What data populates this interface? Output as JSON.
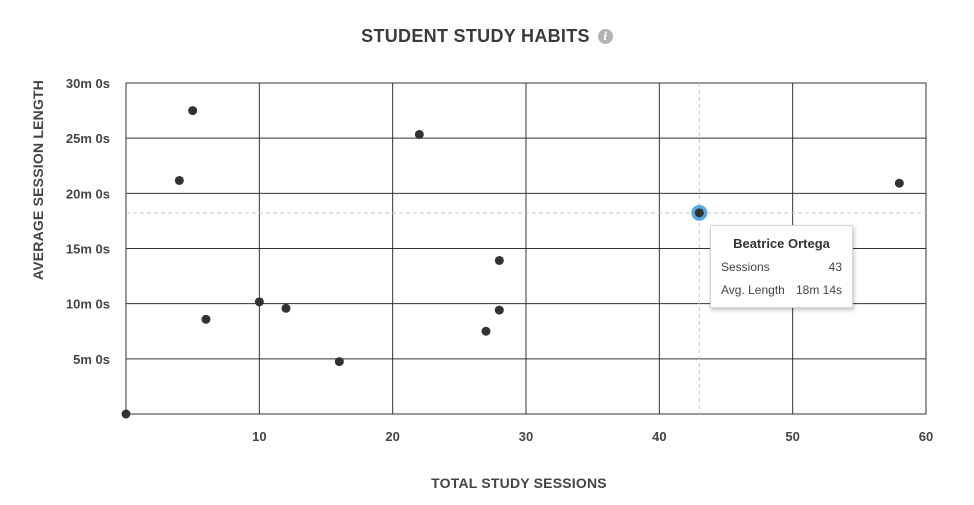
{
  "chart_data": {
    "type": "scatter",
    "title": "STUDENT STUDY HABITS",
    "xlabel": "TOTAL STUDY SESSIONS",
    "ylabel": "AVERAGE SESSION LENGTH",
    "xlim": [
      0,
      60
    ],
    "ylim": [
      0,
      1800
    ],
    "x_ticks": [
      10,
      20,
      30,
      40,
      50,
      60
    ],
    "x_tick_labels": [
      "10",
      "20",
      "30",
      "40",
      "50",
      "60"
    ],
    "y_ticks": [
      300,
      600,
      900,
      1200,
      1500,
      1800
    ],
    "y_tick_labels": [
      "5m 0s",
      "10m 0s",
      "15m 0s",
      "20m 0s",
      "25m 0s",
      "30m 0s"
    ],
    "grid": true,
    "points": [
      {
        "x": 0,
        "y": 0
      },
      {
        "x": 4,
        "y": 1270
      },
      {
        "x": 5,
        "y": 1650
      },
      {
        "x": 6,
        "y": 515
      },
      {
        "x": 10,
        "y": 610
      },
      {
        "x": 12,
        "y": 575
      },
      {
        "x": 16,
        "y": 285
      },
      {
        "x": 22,
        "y": 1520
      },
      {
        "x": 27,
        "y": 450
      },
      {
        "x": 28,
        "y": 835
      },
      {
        "x": 28,
        "y": 565
      },
      {
        "x": 58,
        "y": 1255
      }
    ],
    "highlight": {
      "x": 43,
      "y": 1094
    }
  },
  "tooltip": {
    "name": "Beatrice Ortega",
    "sessions_label": "Sessions",
    "sessions_value": "43",
    "length_label": "Avg. Length",
    "length_value": "18m 14s"
  },
  "colors": {
    "point": "#333333",
    "highlight": "#3a9ad9",
    "grid": "#333333",
    "crosshair": "#c8c8c8"
  },
  "icons": {
    "info": "info-icon"
  }
}
